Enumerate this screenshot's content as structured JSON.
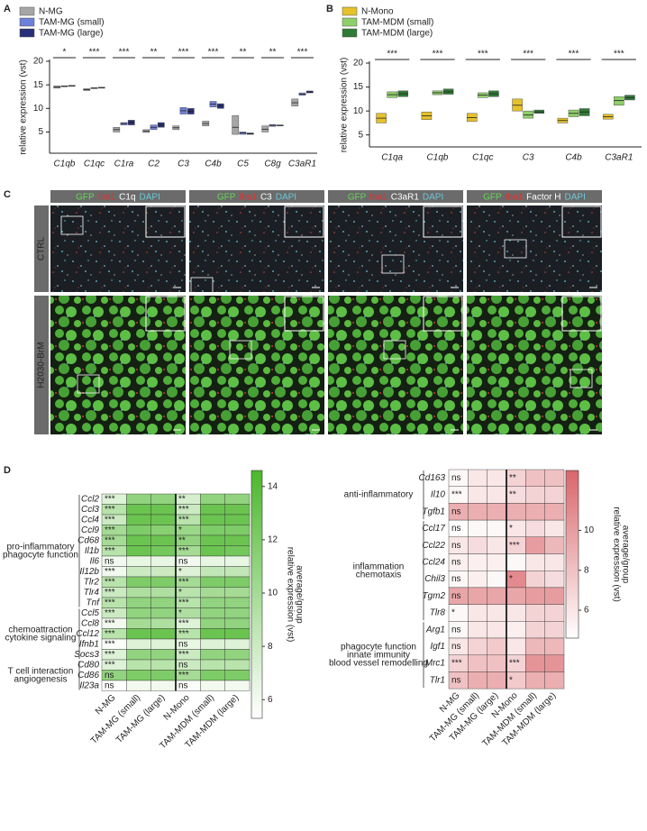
{
  "panel_labels": [
    "A",
    "B",
    "C",
    "D"
  ],
  "chart_data": [
    {
      "type": "box",
      "ylabel": "relative expression (vst)",
      "categories": [
        "C1qb",
        "C1qc",
        "C1ra",
        "C2",
        "C3",
        "C4b",
        "C5",
        "C8g",
        "C3aR1"
      ],
      "significance": [
        "*",
        "***",
        "***",
        "**",
        "***",
        "***",
        "**",
        "**",
        "***"
      ],
      "series": [
        {
          "name": "N-MG",
          "color": "#a6a6a6",
          "low": [
            14.3,
            13.8,
            5.0,
            4.9,
            5.5,
            6.3,
            4.5,
            5.0,
            10.5
          ],
          "median": [
            14.5,
            14.0,
            5.5,
            5.2,
            5.9,
            6.8,
            6.0,
            5.6,
            11.2
          ],
          "high": [
            14.8,
            14.2,
            6.0,
            5.5,
            6.3,
            7.3,
            8.5,
            6.3,
            12.0
          ]
        },
        {
          "name": "TAM-MG (small)",
          "color": "#6f80d9",
          "low": [
            14.6,
            14.2,
            6.5,
            5.5,
            8.8,
            10.3,
            4.5,
            6.2,
            12.8
          ],
          "median": [
            14.7,
            14.3,
            6.8,
            6.0,
            9.5,
            10.9,
            4.8,
            6.4,
            13.0
          ],
          "high": [
            14.8,
            14.4,
            7.0,
            6.5,
            10.2,
            11.5,
            5.0,
            6.6,
            13.3
          ]
        },
        {
          "name": "TAM-MG (large)",
          "color": "#262f78",
          "low": [
            14.7,
            14.3,
            6.5,
            6.0,
            8.8,
            10.0,
            4.5,
            6.3,
            13.3
          ],
          "median": [
            14.8,
            14.4,
            7.0,
            6.5,
            9.4,
            10.5,
            4.6,
            6.4,
            13.5
          ],
          "high": [
            14.9,
            14.5,
            7.5,
            7.0,
            10.0,
            11.0,
            4.8,
            6.5,
            13.7
          ]
        }
      ],
      "ylim": [
        0.5,
        20
      ],
      "yticks": [
        5,
        10,
        15,
        20
      ]
    },
    {
      "type": "box",
      "ylabel": "relative expression (vst)",
      "categories": [
        "C1qa",
        "C1qb",
        "C1qc",
        "C3",
        "C4b",
        "C3aR1"
      ],
      "significance": [
        "***",
        "***",
        "***",
        "***",
        "***",
        "***"
      ],
      "series": [
        {
          "name": "N-Mono",
          "color": "#e6c12b",
          "low": [
            7.5,
            8.2,
            7.8,
            10.0,
            7.5,
            8.3
          ],
          "median": [
            8.5,
            9.0,
            8.6,
            11.2,
            8.0,
            8.8
          ],
          "high": [
            9.5,
            9.8,
            9.5,
            12.5,
            8.5,
            9.3
          ]
        },
        {
          "name": "TAM-MDM (small)",
          "color": "#8fcf6a",
          "low": [
            12.8,
            13.4,
            12.8,
            8.5,
            8.8,
            11.2
          ],
          "median": [
            13.4,
            13.8,
            13.3,
            9.2,
            9.5,
            12.2
          ],
          "high": [
            14.0,
            14.2,
            13.8,
            10.0,
            10.2,
            13.0
          ]
        },
        {
          "name": "TAM-MDM (large)",
          "color": "#2f7a36",
          "low": [
            13.0,
            13.5,
            13.0,
            9.5,
            9.0,
            12.3
          ],
          "median": [
            13.6,
            14.0,
            13.6,
            9.8,
            9.8,
            12.8
          ],
          "high": [
            14.2,
            14.6,
            14.2,
            10.2,
            10.5,
            13.3
          ]
        }
      ],
      "ylim": [
        2.5,
        20
      ],
      "yticks": [
        5,
        10,
        15,
        20
      ]
    },
    {
      "type": "heatmap",
      "color": "#4cb82c",
      "columns": [
        "N-MG",
        "TAM-MG (small)",
        "TAM-MG (large)",
        "N-Mono",
        "TAM-MDM (small)",
        "TAM-MDM (large)"
      ],
      "groups": [
        {
          "label": [
            "pro-inflammatory",
            "phagocyte function"
          ],
          "rows": [
            {
              "name": "Ccl2",
              "values": [
                7,
                11,
                11,
                7.5,
                11,
                11
              ],
              "labels": [
                "***",
                null,
                null,
                "**",
                null,
                null
              ]
            },
            {
              "name": "Ccl3",
              "values": [
                9,
                13,
                13,
                8,
                13,
                13
              ],
              "labels": [
                "***",
                null,
                null,
                "***",
                null,
                null
              ]
            },
            {
              "name": "Ccl4",
              "values": [
                8,
                13,
                13,
                9,
                13,
                13
              ],
              "labels": [
                "***",
                null,
                null,
                "***",
                null,
                null
              ]
            },
            {
              "name": "Ccl9",
              "values": [
                10,
                12,
                11.5,
                10.5,
                12,
                12
              ],
              "labels": [
                "***",
                null,
                null,
                "*",
                null,
                null
              ]
            },
            {
              "name": "Cd68",
              "values": [
                10,
                13,
                13,
                11,
                13,
                13
              ],
              "labels": [
                "***",
                null,
                null,
                "**",
                null,
                null
              ]
            },
            {
              "name": "Il1b",
              "values": [
                9,
                13,
                12.5,
                10,
                13,
                12.5
              ],
              "labels": [
                "***",
                null,
                null,
                "***",
                null,
                null
              ]
            },
            {
              "name": "Il6",
              "values": [
                6,
                6.5,
                6.5,
                6,
                6.5,
                6.5
              ],
              "labels": [
                "ns",
                null,
                null,
                "ns",
                null,
                null
              ]
            },
            {
              "name": "Il12b",
              "values": [
                6,
                8,
                8,
                7,
                8.5,
                8.5
              ],
              "labels": [
                "***",
                null,
                null,
                "*",
                null,
                null
              ]
            },
            {
              "name": "Tlr2",
              "values": [
                9,
                12,
                12,
                10,
                12,
                12
              ],
              "labels": [
                "***",
                null,
                null,
                "***",
                null,
                null
              ]
            },
            {
              "name": "Tlr4",
              "values": [
                8,
                9.5,
                9.5,
                9,
                10,
                10
              ],
              "labels": [
                "***",
                null,
                null,
                "*",
                null,
                null
              ]
            },
            {
              "name": "Tnf",
              "values": [
                9,
                11,
                11,
                9,
                11,
                11
              ],
              "labels": [
                "***",
                null,
                null,
                "***",
                null,
                null
              ]
            }
          ]
        },
        {
          "label": [
            "chemoattraction",
            "cytokine signaling"
          ],
          "rows": [
            {
              "name": "Ccl5",
              "values": [
                8,
                11,
                11,
                9.5,
                11,
                11
              ],
              "labels": [
                "***",
                null,
                null,
                "*",
                null,
                null
              ]
            },
            {
              "name": "Ccl8",
              "values": [
                6,
                10,
                9.5,
                7,
                11,
                11
              ],
              "labels": [
                "***",
                null,
                null,
                "***",
                null,
                null
              ]
            },
            {
              "name": "Ccl12",
              "values": [
                9,
                13,
                13,
                9,
                13,
                13
              ],
              "labels": [
                "***",
                null,
                null,
                "***",
                null,
                null
              ]
            },
            {
              "name": "Ifnb1",
              "values": [
                5.5,
                7,
                7,
                6.5,
                7,
                7
              ],
              "labels": [
                "***",
                null,
                null,
                "ns",
                null,
                null
              ]
            },
            {
              "name": "Socs3",
              "values": [
                7,
                11,
                11,
                8,
                11,
                11
              ],
              "labels": [
                "***",
                null,
                null,
                "***",
                null,
                null
              ]
            }
          ]
        },
        {
          "label": [
            "T cell interaction",
            "angiogenesis"
          ],
          "rows": [
            {
              "name": "Cd80",
              "values": [
                7,
                9,
                9,
                8,
                9,
                9
              ],
              "labels": [
                "***",
                null,
                null,
                "ns",
                null,
                null
              ]
            },
            {
              "name": "Cd86",
              "values": [
                11,
                12,
                12,
                10,
                12,
                12
              ],
              "labels": [
                "ns",
                null,
                null,
                "***",
                null,
                null
              ]
            },
            {
              "name": "Il23a",
              "values": [
                5,
                6,
                6,
                5.5,
                6,
                6
              ],
              "labels": [
                "ns",
                null,
                null,
                "ns",
                null,
                null
              ]
            }
          ]
        }
      ],
      "clim": [
        5.3,
        14.6
      ],
      "cticks": [
        6,
        8,
        10,
        12,
        14
      ],
      "colorbar_label": [
        "average/group",
        "relative expression (vst)"
      ]
    },
    {
      "type": "heatmap",
      "color": "#d9666b",
      "columns": [
        "N-MG",
        "TAM-MG (small)",
        "TAM-MG (large)",
        "N-Mono",
        "TAM-MDM (small)",
        "TAM-MDM (large)"
      ],
      "groups": [
        {
          "label": [
            "anti-inflammatory"
          ],
          "rows": [
            {
              "name": "Cd163",
              "values": [
                5,
                6,
                6,
                7,
                8,
                8
              ],
              "labels": [
                "ns",
                null,
                null,
                "**",
                null,
                null
              ]
            },
            {
              "name": "Il10",
              "values": [
                5,
                6,
                6,
                6.5,
                7,
                7
              ],
              "labels": [
                "***",
                null,
                null,
                "**",
                null,
                null
              ]
            },
            {
              "name": "Tgfb1",
              "values": [
                9,
                9,
                9,
                9,
                9,
                9
              ],
              "labels": [
                "ns",
                null,
                null,
                null,
                null,
                null
              ]
            }
          ]
        },
        {
          "label": [
            "inflammation",
            "chemotaxis"
          ],
          "rows": [
            {
              "name": "Ccl17",
              "values": [
                4.5,
                5,
                5,
                6,
                6.5,
                6
              ],
              "labels": [
                "ns",
                null,
                null,
                "*",
                null,
                null
              ]
            },
            {
              "name": "Ccl22",
              "values": [
                6,
                6.5,
                6,
                7,
                10,
                8.5
              ],
              "labels": [
                "ns",
                null,
                null,
                "***",
                null,
                null
              ]
            },
            {
              "name": "Ccl24",
              "values": [
                5.5,
                5.5,
                5.5,
                5,
                6,
                6
              ],
              "labels": [
                "ns",
                null,
                null,
                null,
                null,
                null
              ]
            },
            {
              "name": "Chil3",
              "values": [
                5,
                5.5,
                5,
                11,
                7,
                6.5
              ],
              "labels": [
                "ns",
                null,
                null,
                "*",
                null,
                null
              ]
            },
            {
              "name": "Tgm2",
              "values": [
                9.5,
                9.5,
                9.5,
                9.5,
                10,
                10
              ],
              "labels": [
                "ns",
                null,
                null,
                null,
                null,
                null
              ]
            },
            {
              "name": "Tlr8",
              "values": [
                5,
                6,
                6,
                6,
                7,
                7
              ],
              "labels": [
                "*",
                null,
                null,
                null,
                null,
                null
              ]
            }
          ]
        },
        {
          "label": [
            "phagocyte function",
            "innate immunity",
            "blood vessel remodelling"
          ],
          "rows": [
            {
              "name": "Arg1",
              "values": [
                5,
                6,
                6,
                5.5,
                7,
                7
              ],
              "labels": [
                "ns",
                null,
                null,
                null,
                null,
                null
              ]
            },
            {
              "name": "Igf1",
              "values": [
                6,
                7,
                7.5,
                6,
                8.5,
                8.5
              ],
              "labels": [
                "ns",
                null,
                null,
                null,
                null,
                null
              ]
            },
            {
              "name": "Mrc1",
              "values": [
                7,
                8,
                8,
                7,
                10.5,
                10.5
              ],
              "labels": [
                "***",
                null,
                null,
                "***",
                null,
                null
              ]
            },
            {
              "name": "Tlr1",
              "values": [
                8,
                9,
                9,
                7.5,
                9,
                9
              ],
              "labels": [
                "ns",
                null,
                null,
                "*",
                null,
                null
              ]
            }
          ]
        }
      ],
      "clim": [
        4.6,
        13
      ],
      "cticks": [
        6,
        8,
        10
      ],
      "colorbar_label": [
        "average/group",
        "relative expression (vst)"
      ]
    }
  ],
  "micrographs": {
    "stain_colors": [
      "#66d455",
      "#e03333",
      "#ffffff",
      "#6cc8d8"
    ],
    "columns": [
      {
        "stains": [
          "GFP",
          "Iba1",
          "C1q",
          "DAPI"
        ]
      },
      {
        "stains": [
          "GFP",
          "Iba1",
          "C3",
          "DAPI"
        ]
      },
      {
        "stains": [
          "GFP",
          "Iba1",
          "C3aR1",
          "DAPI"
        ]
      },
      {
        "stains": [
          "GFP",
          "Iba1",
          "Factor H",
          "DAPI"
        ]
      }
    ],
    "rows": [
      "CTRL",
      "H2030-BrM"
    ]
  }
}
